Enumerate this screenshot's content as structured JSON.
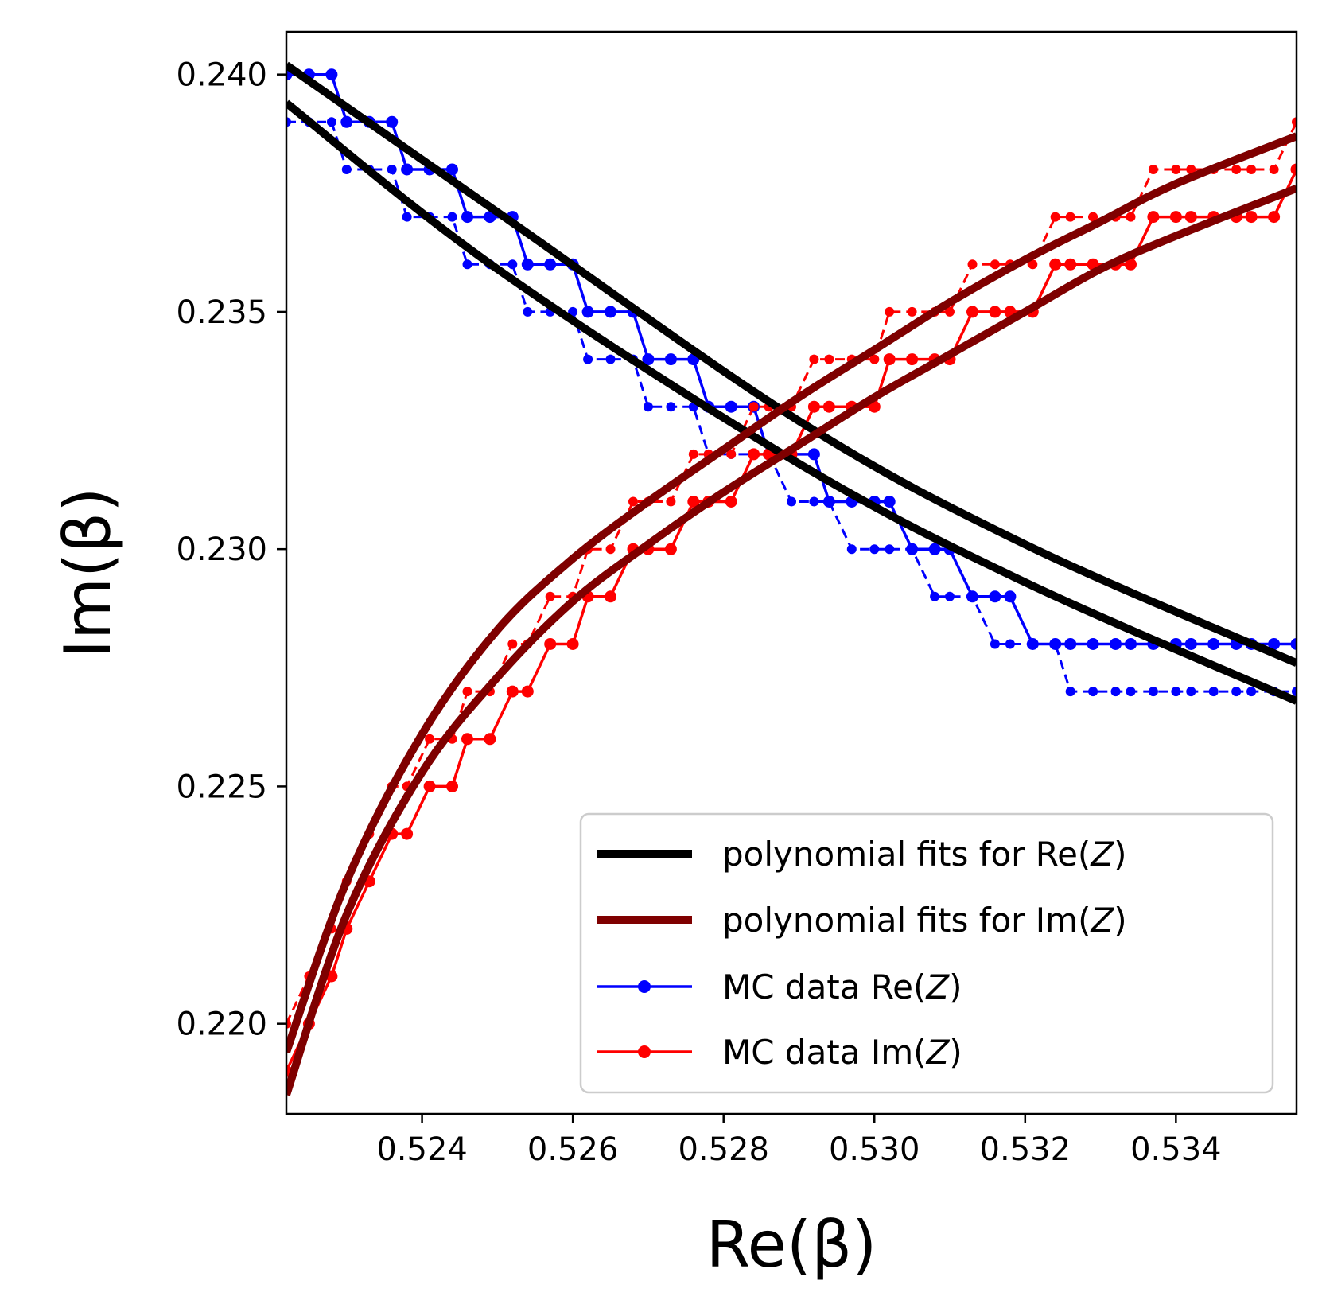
{
  "chart_data": {
    "type": "line",
    "xlabel": "Re(β)",
    "ylabel": "Im(β)",
    "xlim": [
      0.5222,
      0.5356
    ],
    "ylim": [
      0.2181,
      0.2409
    ],
    "xticks": [
      0.524,
      0.526,
      0.528,
      0.53,
      0.532,
      0.534
    ],
    "xtick_labels": [
      "0.524",
      "0.526",
      "0.528",
      "0.530",
      "0.532",
      "0.534"
    ],
    "yticks": [
      0.22,
      0.225,
      0.23,
      0.235,
      0.24
    ],
    "ytick_labels": [
      "0.220",
      "0.225",
      "0.230",
      "0.235",
      "0.240"
    ],
    "legend": {
      "position": "lower-right",
      "entries": [
        {
          "label": "polynomial fits for Re(",
          "label_italic": "Z",
          "label_end": ")",
          "color": "#000000",
          "style": "thick-line"
        },
        {
          "label": "polynomial fits for Im(",
          "label_italic": "Z",
          "label_end": ")",
          "color": "#7f0000",
          "style": "thick-line"
        },
        {
          "label": "MC data Re(",
          "label_italic": "Z",
          "label_end": ")",
          "color": "#0000ff",
          "style": "line-marker"
        },
        {
          "label": "MC data Im(",
          "label_italic": "Z",
          "label_end": ")",
          "color": "#ff0000",
          "style": "line-marker"
        }
      ]
    },
    "series": [
      {
        "name": "polynomial fit Re(Z) upper",
        "kind": "fit",
        "color": "#000000",
        "x": [
          0.5222,
          0.525,
          0.529,
          0.532,
          0.5356
        ],
        "y": [
          0.2402,
          0.2371,
          0.2327,
          0.2301,
          0.2276
        ]
      },
      {
        "name": "polynomial fit Re(Z) lower",
        "kind": "fit",
        "color": "#000000",
        "x": [
          0.5222,
          0.525,
          0.529,
          0.532,
          0.5356
        ],
        "y": [
          0.2394,
          0.2359,
          0.2318,
          0.2293,
          0.2268
        ]
      },
      {
        "name": "polynomial fit Im(Z) upper",
        "kind": "fit",
        "color": "#7f0000",
        "x": [
          0.5222,
          0.523,
          0.524,
          0.525,
          0.526,
          0.527,
          0.528,
          0.529,
          0.53,
          0.531,
          0.532,
          0.533,
          0.534,
          0.5356
        ],
        "y": [
          0.2194,
          0.223,
          0.2261,
          0.2283,
          0.2298,
          0.231,
          0.2321,
          0.2332,
          0.2342,
          0.2352,
          0.2361,
          0.2369,
          0.2377,
          0.2387
        ]
      },
      {
        "name": "polynomial fit Im(Z) lower",
        "kind": "fit",
        "color": "#7f0000",
        "x": [
          0.5222,
          0.523,
          0.524,
          0.525,
          0.526,
          0.527,
          0.528,
          0.529,
          0.53,
          0.531,
          0.532,
          0.533,
          0.534,
          0.5356
        ],
        "y": [
          0.2185,
          0.2223,
          0.2253,
          0.2273,
          0.2289,
          0.2301,
          0.2312,
          0.2322,
          0.2332,
          0.2341,
          0.235,
          0.2359,
          0.2366,
          0.2376
        ]
      },
      {
        "name": "MC data Re(Z) solid",
        "kind": "mc",
        "color": "#0000ff",
        "dashed": false,
        "x": [
          0.5222,
          0.5225,
          0.5228,
          0.523,
          0.5233,
          0.5236,
          0.5238,
          0.5241,
          0.5244,
          0.5246,
          0.5249,
          0.5252,
          0.5254,
          0.5257,
          0.526,
          0.5262,
          0.5265,
          0.5268,
          0.527,
          0.5273,
          0.5276,
          0.5278,
          0.5281,
          0.5284,
          0.5286,
          0.5289,
          0.5292,
          0.5294,
          0.5297,
          0.53,
          0.5302,
          0.5305,
          0.5308,
          0.531,
          0.5313,
          0.5316,
          0.5318,
          0.5321,
          0.5324,
          0.5326,
          0.5329,
          0.5332,
          0.5334,
          0.5337,
          0.534,
          0.5342,
          0.5345,
          0.5348,
          0.535,
          0.5353,
          0.5356
        ],
        "y": [
          0.24,
          0.24,
          0.24,
          0.239,
          0.239,
          0.239,
          0.238,
          0.238,
          0.238,
          0.237,
          0.237,
          0.237,
          0.236,
          0.236,
          0.236,
          0.235,
          0.235,
          0.235,
          0.234,
          0.234,
          0.234,
          0.233,
          0.233,
          0.233,
          0.232,
          0.232,
          0.232,
          0.231,
          0.231,
          0.231,
          0.231,
          0.23,
          0.23,
          0.23,
          0.229,
          0.229,
          0.229,
          0.228,
          0.228,
          0.228,
          0.228,
          0.228,
          0.228,
          0.228,
          0.228,
          0.228,
          0.228,
          0.228,
          0.228,
          0.228,
          0.228
        ]
      },
      {
        "name": "MC data Re(Z) dashed",
        "kind": "mc",
        "color": "#0000ff",
        "dashed": true,
        "x": [
          0.5222,
          0.5225,
          0.5228,
          0.523,
          0.5233,
          0.5236,
          0.5238,
          0.5241,
          0.5244,
          0.5246,
          0.5249,
          0.5252,
          0.5254,
          0.5257,
          0.526,
          0.5262,
          0.5265,
          0.5268,
          0.527,
          0.5273,
          0.5276,
          0.5278,
          0.5281,
          0.5284,
          0.5286,
          0.5289,
          0.5292,
          0.5294,
          0.5297,
          0.53,
          0.5302,
          0.5305,
          0.5308,
          0.531,
          0.5313,
          0.5316,
          0.5318,
          0.5321,
          0.5324,
          0.5326,
          0.5329,
          0.5332,
          0.5334,
          0.5337,
          0.534,
          0.5342,
          0.5345,
          0.5348,
          0.535,
          0.5353,
          0.5356
        ],
        "y": [
          0.239,
          0.239,
          0.239,
          0.238,
          0.238,
          0.238,
          0.237,
          0.237,
          0.237,
          0.236,
          0.236,
          0.236,
          0.235,
          0.235,
          0.235,
          0.234,
          0.234,
          0.234,
          0.233,
          0.233,
          0.233,
          0.232,
          0.232,
          0.232,
          0.232,
          0.231,
          0.231,
          0.231,
          0.23,
          0.23,
          0.23,
          0.23,
          0.229,
          0.229,
          0.229,
          0.228,
          0.228,
          0.228,
          0.228,
          0.227,
          0.227,
          0.227,
          0.227,
          0.227,
          0.227,
          0.227,
          0.227,
          0.227,
          0.227,
          0.227,
          0.227
        ]
      },
      {
        "name": "MC data Im(Z) solid",
        "kind": "mc",
        "color": "#ff0000",
        "dashed": false,
        "x": [
          0.5222,
          0.5225,
          0.5228,
          0.523,
          0.5233,
          0.5236,
          0.5238,
          0.5241,
          0.5244,
          0.5246,
          0.5249,
          0.5252,
          0.5254,
          0.5257,
          0.526,
          0.5262,
          0.5265,
          0.5268,
          0.527,
          0.5273,
          0.5276,
          0.5278,
          0.5281,
          0.5284,
          0.5286,
          0.5289,
          0.5292,
          0.5294,
          0.5297,
          0.53,
          0.5302,
          0.5305,
          0.5308,
          0.531,
          0.5313,
          0.5316,
          0.5318,
          0.5321,
          0.5324,
          0.5326,
          0.5329,
          0.5332,
          0.5334,
          0.5337,
          0.534,
          0.5342,
          0.5345,
          0.5348,
          0.535,
          0.5353,
          0.5356
        ],
        "y": [
          0.219,
          0.22,
          0.221,
          0.222,
          0.223,
          0.224,
          0.224,
          0.225,
          0.225,
          0.226,
          0.226,
          0.227,
          0.227,
          0.228,
          0.228,
          0.229,
          0.229,
          0.23,
          0.23,
          0.23,
          0.231,
          0.231,
          0.231,
          0.232,
          0.232,
          0.232,
          0.233,
          0.233,
          0.233,
          0.233,
          0.234,
          0.234,
          0.234,
          0.234,
          0.235,
          0.235,
          0.235,
          0.235,
          0.236,
          0.236,
          0.236,
          0.236,
          0.236,
          0.237,
          0.237,
          0.237,
          0.237,
          0.237,
          0.237,
          0.237,
          0.238
        ]
      },
      {
        "name": "MC data Im(Z) dashed",
        "kind": "mc",
        "color": "#ff0000",
        "dashed": true,
        "x": [
          0.5222,
          0.5225,
          0.5228,
          0.523,
          0.5233,
          0.5236,
          0.5238,
          0.5241,
          0.5244,
          0.5246,
          0.5249,
          0.5252,
          0.5254,
          0.5257,
          0.526,
          0.5262,
          0.5265,
          0.5268,
          0.527,
          0.5273,
          0.5276,
          0.5278,
          0.5281,
          0.5284,
          0.5286,
          0.5289,
          0.5292,
          0.5294,
          0.5297,
          0.53,
          0.5302,
          0.5305,
          0.5308,
          0.531,
          0.5313,
          0.5316,
          0.5318,
          0.5321,
          0.5324,
          0.5326,
          0.5329,
          0.5332,
          0.5334,
          0.5337,
          0.534,
          0.5342,
          0.5345,
          0.5348,
          0.535,
          0.5353,
          0.5356
        ],
        "y": [
          0.22,
          0.221,
          0.222,
          0.223,
          0.224,
          0.225,
          0.225,
          0.226,
          0.226,
          0.227,
          0.227,
          0.228,
          0.228,
          0.229,
          0.229,
          0.23,
          0.23,
          0.231,
          0.231,
          0.231,
          0.232,
          0.232,
          0.232,
          0.233,
          0.233,
          0.233,
          0.234,
          0.234,
          0.234,
          0.234,
          0.235,
          0.235,
          0.235,
          0.235,
          0.236,
          0.236,
          0.236,
          0.236,
          0.237,
          0.237,
          0.237,
          0.237,
          0.237,
          0.238,
          0.238,
          0.238,
          0.238,
          0.238,
          0.238,
          0.238,
          0.239
        ]
      }
    ]
  }
}
